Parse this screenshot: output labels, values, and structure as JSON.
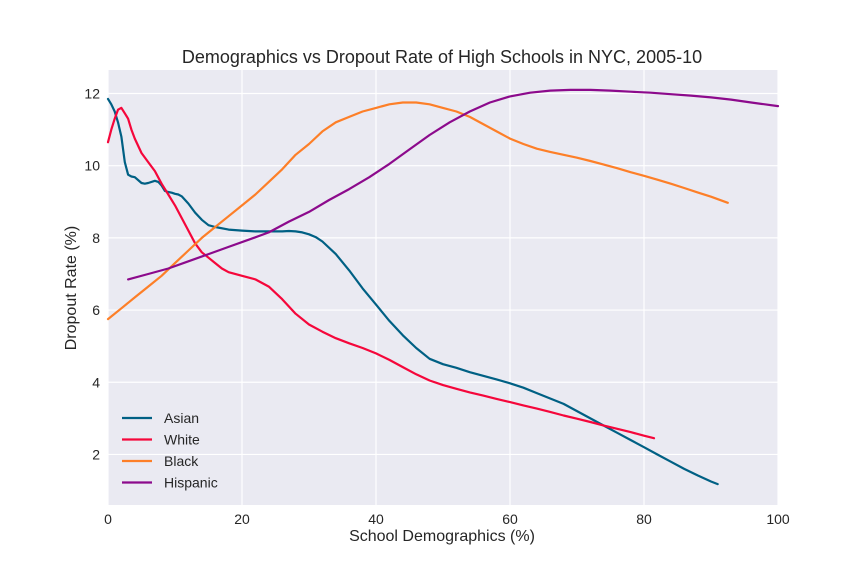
{
  "chart_data": {
    "type": "line",
    "title": "Demographics vs Dropout Rate of High Schools in NYC, 2005-10",
    "xlabel": "School Demographics (%)",
    "ylabel": "Dropout Rate (%)",
    "xlim": [
      0,
      100
    ],
    "ylim": [
      0.6,
      12.65
    ],
    "xticks": [
      0,
      20,
      40,
      60,
      80,
      100
    ],
    "yticks": [
      2,
      4,
      6,
      8,
      10,
      12
    ],
    "grid": true,
    "background": "#eaeaf2",
    "grid_color": "#ffffff",
    "legend_position": "lower-left",
    "series": [
      {
        "name": "Asian",
        "color": "#006084",
        "x": [
          0,
          0.5,
          1,
          1.5,
          2,
          2.5,
          3,
          3.5,
          4,
          5,
          5.5,
          6,
          7,
          7.5,
          8,
          8.5,
          9,
          9.5,
          10,
          10.5,
          11,
          12,
          13,
          14,
          15,
          16,
          18,
          20,
          22,
          24,
          26,
          27,
          28,
          29,
          30,
          31,
          32,
          34,
          36,
          38,
          40,
          42,
          44,
          46,
          48,
          50,
          52,
          54,
          56,
          58,
          60,
          62,
          64,
          66,
          68,
          70,
          72,
          74,
          76,
          78,
          80,
          82,
          84,
          86,
          88,
          90,
          91
        ],
        "y": [
          11.85,
          11.7,
          11.5,
          11.2,
          10.8,
          10.1,
          9.75,
          9.7,
          9.68,
          9.52,
          9.5,
          9.52,
          9.58,
          9.55,
          9.45,
          9.3,
          9.27,
          9.25,
          9.22,
          9.2,
          9.15,
          8.95,
          8.7,
          8.5,
          8.35,
          8.3,
          8.23,
          8.2,
          8.18,
          8.18,
          8.18,
          8.19,
          8.18,
          8.15,
          8.1,
          8.02,
          7.9,
          7.55,
          7.1,
          6.6,
          6.15,
          5.7,
          5.3,
          4.95,
          4.65,
          4.5,
          4.4,
          4.28,
          4.18,
          4.08,
          3.97,
          3.85,
          3.7,
          3.55,
          3.4,
          3.2,
          3.0,
          2.8,
          2.6,
          2.4,
          2.2,
          2.0,
          1.8,
          1.6,
          1.42,
          1.25,
          1.18
        ]
      },
      {
        "name": "White",
        "color": "#f5073b",
        "x": [
          0,
          0.5,
          1,
          1.5,
          2,
          2.5,
          3,
          3.5,
          4,
          5,
          6,
          7,
          8,
          9,
          10,
          11,
          12,
          13,
          14,
          15,
          16,
          17,
          18,
          20,
          22,
          24,
          26,
          28,
          30,
          32,
          34,
          36,
          38,
          40,
          42,
          44,
          46,
          48,
          50,
          52,
          54,
          56,
          58,
          60,
          62,
          64,
          66,
          68,
          70,
          72,
          74,
          76,
          78,
          80,
          81.5
        ],
        "y": [
          10.65,
          11.0,
          11.3,
          11.55,
          11.6,
          11.45,
          11.3,
          11.0,
          10.75,
          10.35,
          10.1,
          9.85,
          9.5,
          9.2,
          8.9,
          8.55,
          8.2,
          7.85,
          7.6,
          7.45,
          7.3,
          7.15,
          7.05,
          6.95,
          6.85,
          6.65,
          6.3,
          5.9,
          5.6,
          5.4,
          5.22,
          5.08,
          4.95,
          4.8,
          4.62,
          4.42,
          4.22,
          4.05,
          3.92,
          3.82,
          3.72,
          3.63,
          3.54,
          3.45,
          3.36,
          3.27,
          3.18,
          3.08,
          2.99,
          2.9,
          2.8,
          2.71,
          2.62,
          2.52,
          2.45
        ]
      },
      {
        "name": "Black",
        "color": "#fd7f28",
        "x": [
          0,
          2,
          4,
          6,
          8,
          10,
          12,
          14,
          16,
          18,
          20,
          22,
          24,
          26,
          28,
          30,
          32,
          34,
          36,
          38,
          40,
          42,
          44,
          46,
          48,
          50,
          52,
          54,
          56,
          58,
          60,
          62,
          64,
          66,
          68,
          70,
          72,
          74,
          76,
          78,
          80,
          82,
          84,
          86,
          88,
          90,
          92.5
        ],
        "y": [
          5.75,
          6.05,
          6.35,
          6.65,
          6.95,
          7.3,
          7.65,
          8.0,
          8.3,
          8.6,
          8.9,
          9.2,
          9.55,
          9.9,
          10.3,
          10.6,
          10.95,
          11.2,
          11.35,
          11.5,
          11.6,
          11.7,
          11.75,
          11.75,
          11.7,
          11.6,
          11.5,
          11.35,
          11.15,
          10.95,
          10.75,
          10.6,
          10.47,
          10.38,
          10.3,
          10.22,
          10.13,
          10.03,
          9.93,
          9.82,
          9.72,
          9.61,
          9.5,
          9.38,
          9.26,
          9.14,
          8.97
        ]
      },
      {
        "name": "Hispanic",
        "color": "#8c0a8c",
        "x": [
          3,
          6,
          9,
          12,
          15,
          18,
          21,
          24,
          27,
          30,
          33,
          36,
          39,
          42,
          45,
          48,
          51,
          54,
          57,
          60,
          63,
          66,
          69,
          72,
          75,
          78,
          81,
          84,
          87,
          90,
          93,
          96,
          100
        ],
        "y": [
          6.85,
          7.0,
          7.15,
          7.35,
          7.55,
          7.75,
          7.95,
          8.15,
          8.45,
          8.72,
          9.05,
          9.35,
          9.68,
          10.05,
          10.45,
          10.85,
          11.2,
          11.5,
          11.75,
          11.92,
          12.02,
          12.08,
          12.1,
          12.1,
          12.08,
          12.05,
          12.02,
          11.98,
          11.94,
          11.89,
          11.83,
          11.75,
          11.65
        ]
      }
    ]
  }
}
